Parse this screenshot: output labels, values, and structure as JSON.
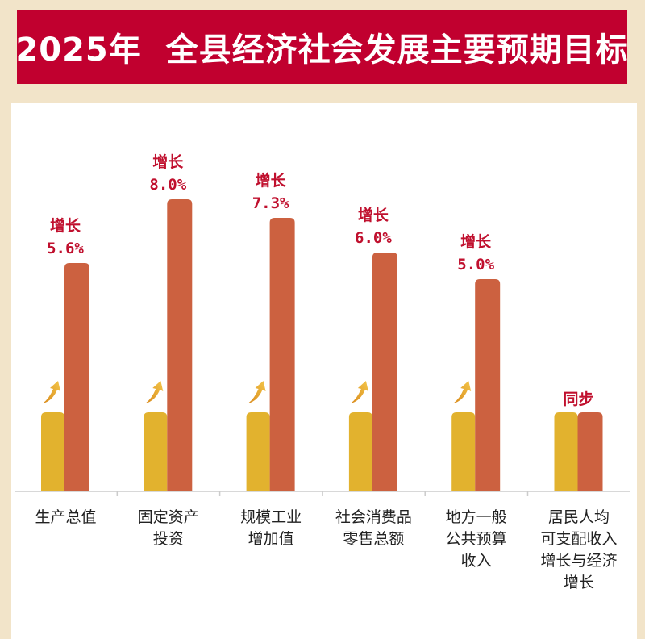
{
  "title": "2025年  全县经济社会发展主要预期目标",
  "chart_data": {
    "type": "bar",
    "title": "2025年 全县经济社会发展主要预期目标",
    "categories": [
      "生产总值",
      "固定资产\n投资",
      "规模工业\n增加值",
      "社会消费品\n零售总额",
      "地方一般\n公共预算\n收入",
      "居民人均\n可支配收入\n增长与经济\n增长"
    ],
    "series": [
      {
        "name": "baseline",
        "values": [
          1,
          1,
          1,
          1,
          1,
          1
        ]
      },
      {
        "name": "target growth (%)",
        "values": [
          5.6,
          8.0,
          7.3,
          6.0,
          5.0,
          null
        ]
      }
    ],
    "annotations": [
      "增长\n5.6%",
      "增长\n8.0%",
      "增长\n7.3%",
      "增长\n6.0%",
      "增长\n5.0%",
      "同步"
    ],
    "colors": {
      "baseline": "#e2b22e",
      "target": "#cc6140",
      "annotation": "#c0102e",
      "banner": "#c1002f"
    },
    "grid": false
  }
}
